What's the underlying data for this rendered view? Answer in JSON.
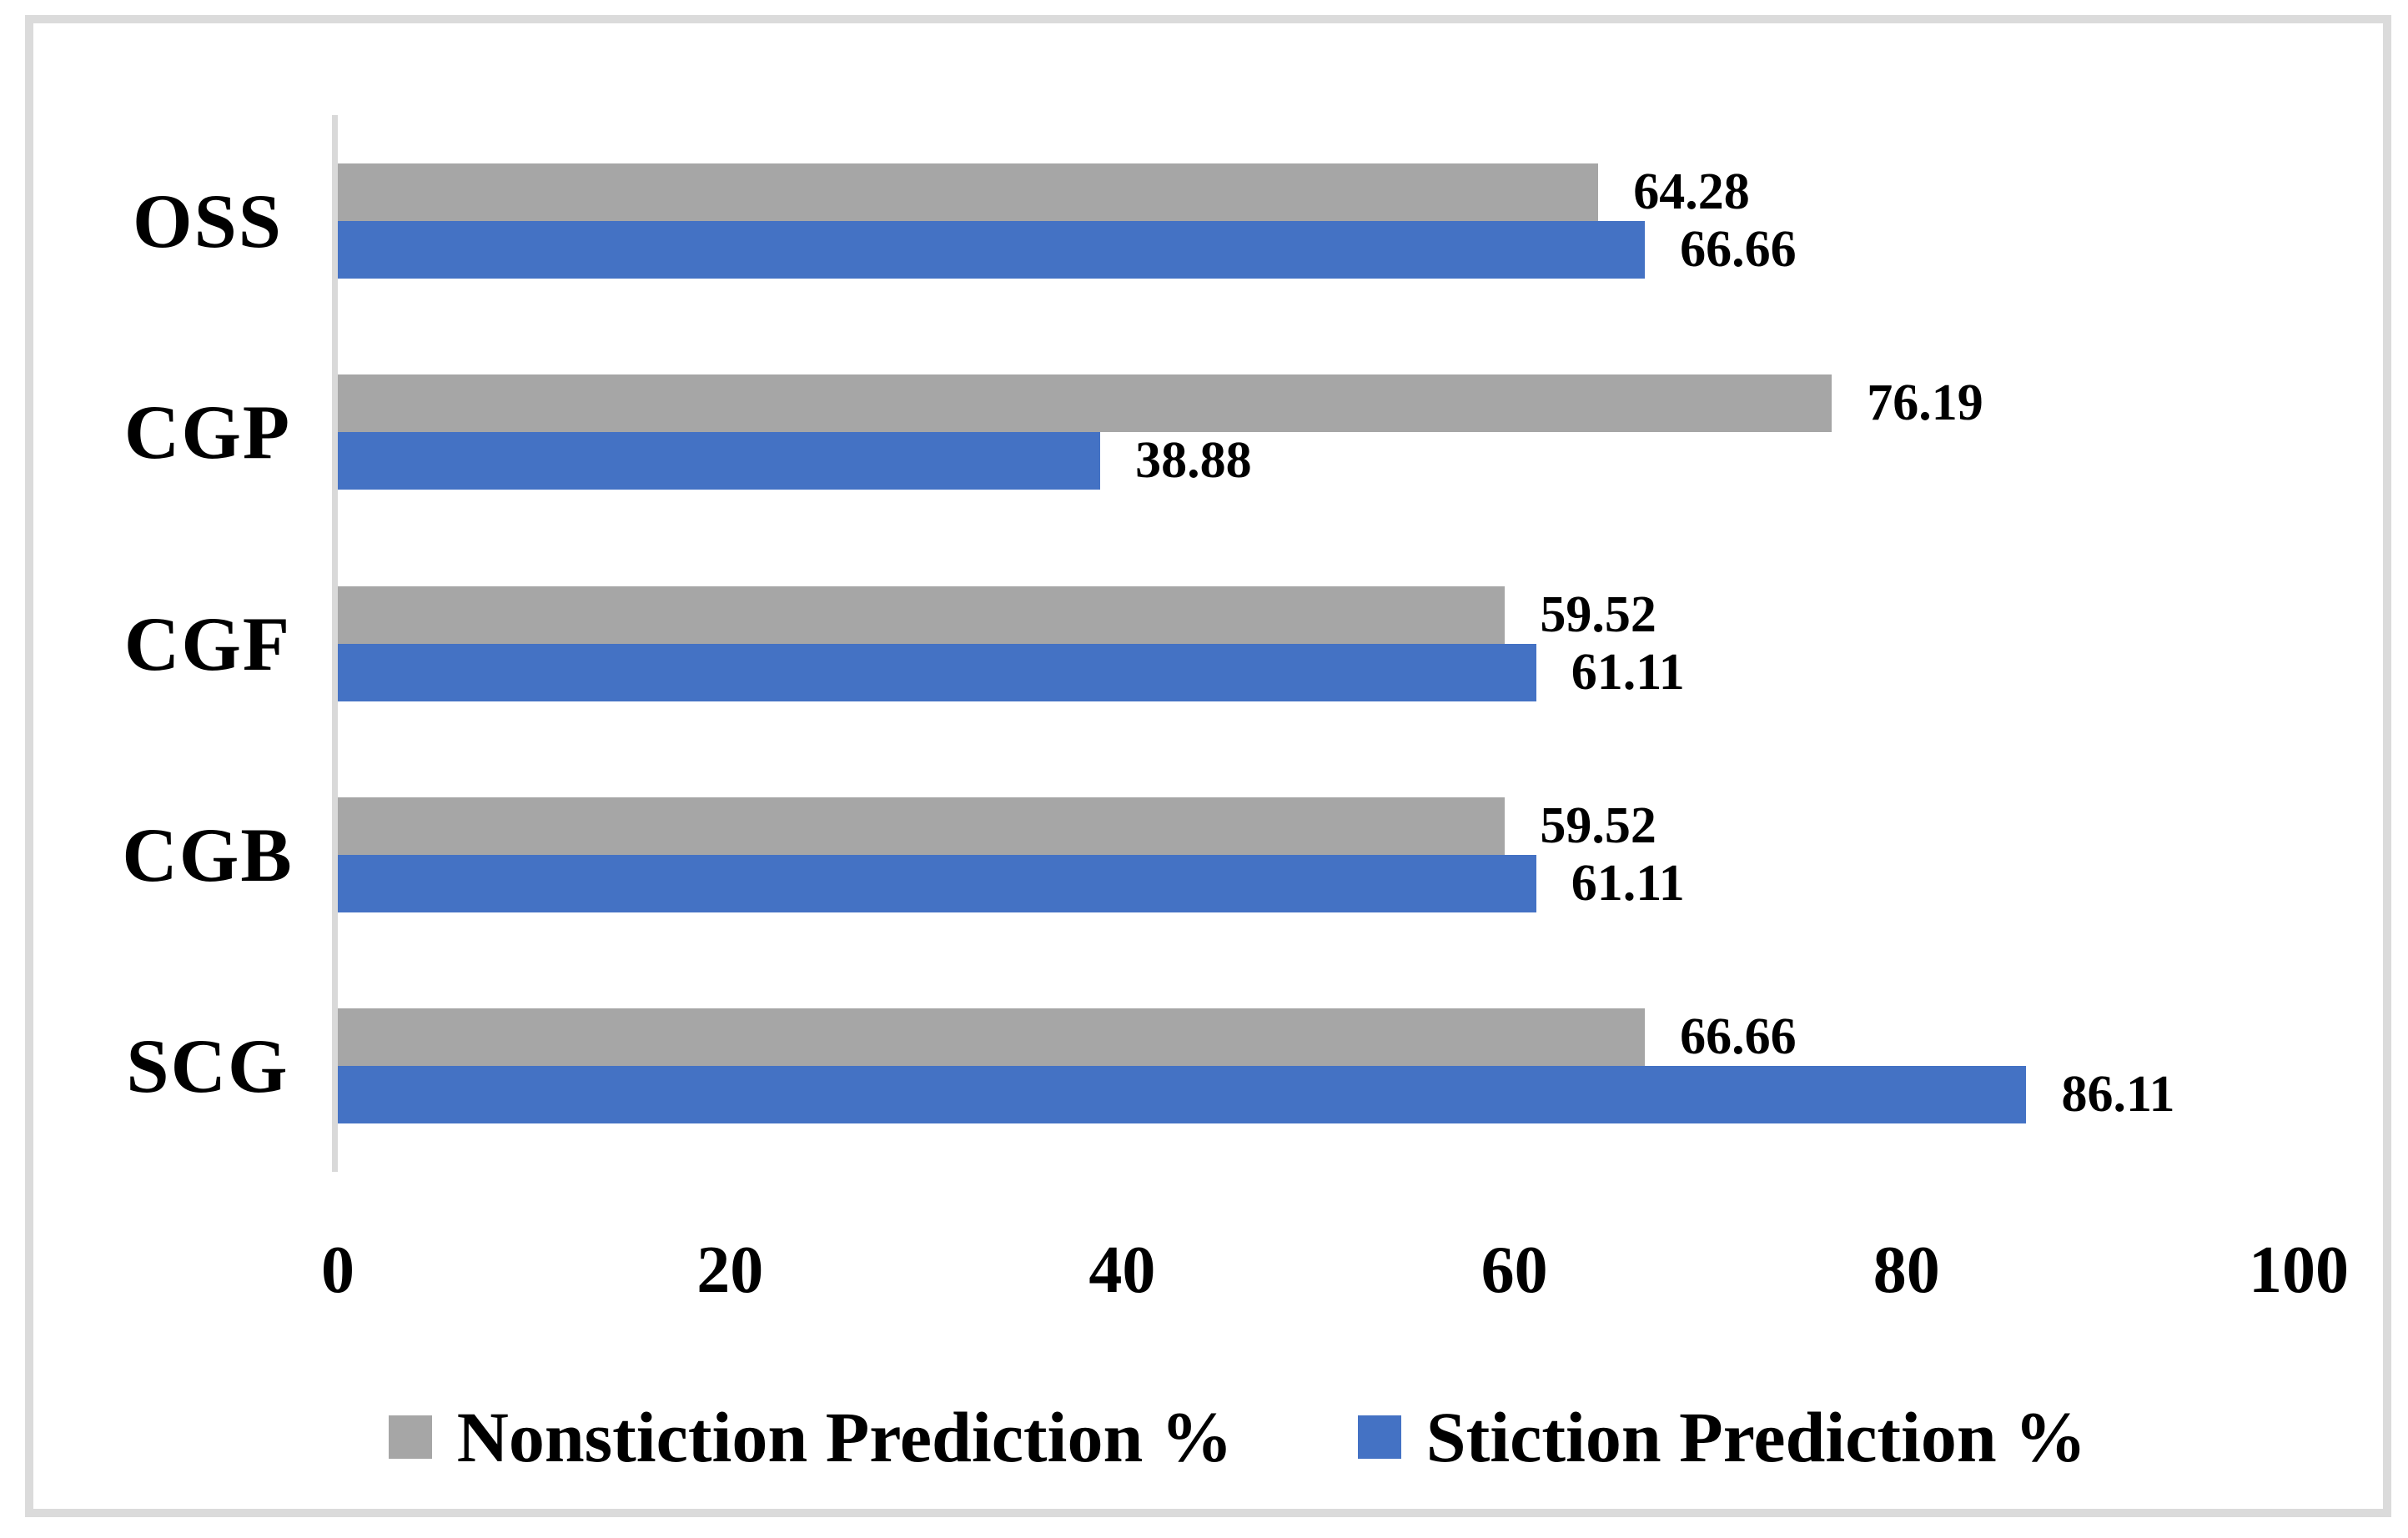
{
  "chart_data": {
    "type": "bar",
    "orientation": "horizontal",
    "title": "",
    "xlabel": "",
    "ylabel": "",
    "categories": [
      "OSS",
      "CGP",
      "CGF",
      "CGB",
      "SCG"
    ],
    "series": [
      {
        "name": "Nonstiction Prediction %",
        "color": "#a6a6a6",
        "values": [
          64.28,
          76.19,
          59.52,
          59.52,
          66.66
        ]
      },
      {
        "name": "Stiction Prediction %",
        "color": "#4472c4",
        "values": [
          66.66,
          38.88,
          61.11,
          61.11,
          86.11
        ]
      }
    ],
    "data_labels": [
      "64.28",
      "66.66",
      "76.19",
      "38.88",
      "59.52",
      "61.11",
      "59.52",
      "61.11",
      "66.66",
      "86.11"
    ],
    "xlim": [
      0,
      100
    ],
    "x_ticks": [
      0,
      20,
      40,
      60,
      80,
      100
    ],
    "grid": false,
    "legend_position": "bottom"
  },
  "legend": {
    "nonstiction_label": "Nonstiction Prediction %",
    "stiction_label": "Stiction Prediction %"
  },
  "colors": {
    "background": "#ffffff",
    "frame_border": "#dbdbdb",
    "axis_line": "#d9d9d9",
    "gray_series": "#a6a6a6",
    "blue_series": "#4472c4",
    "text": "#000000"
  }
}
